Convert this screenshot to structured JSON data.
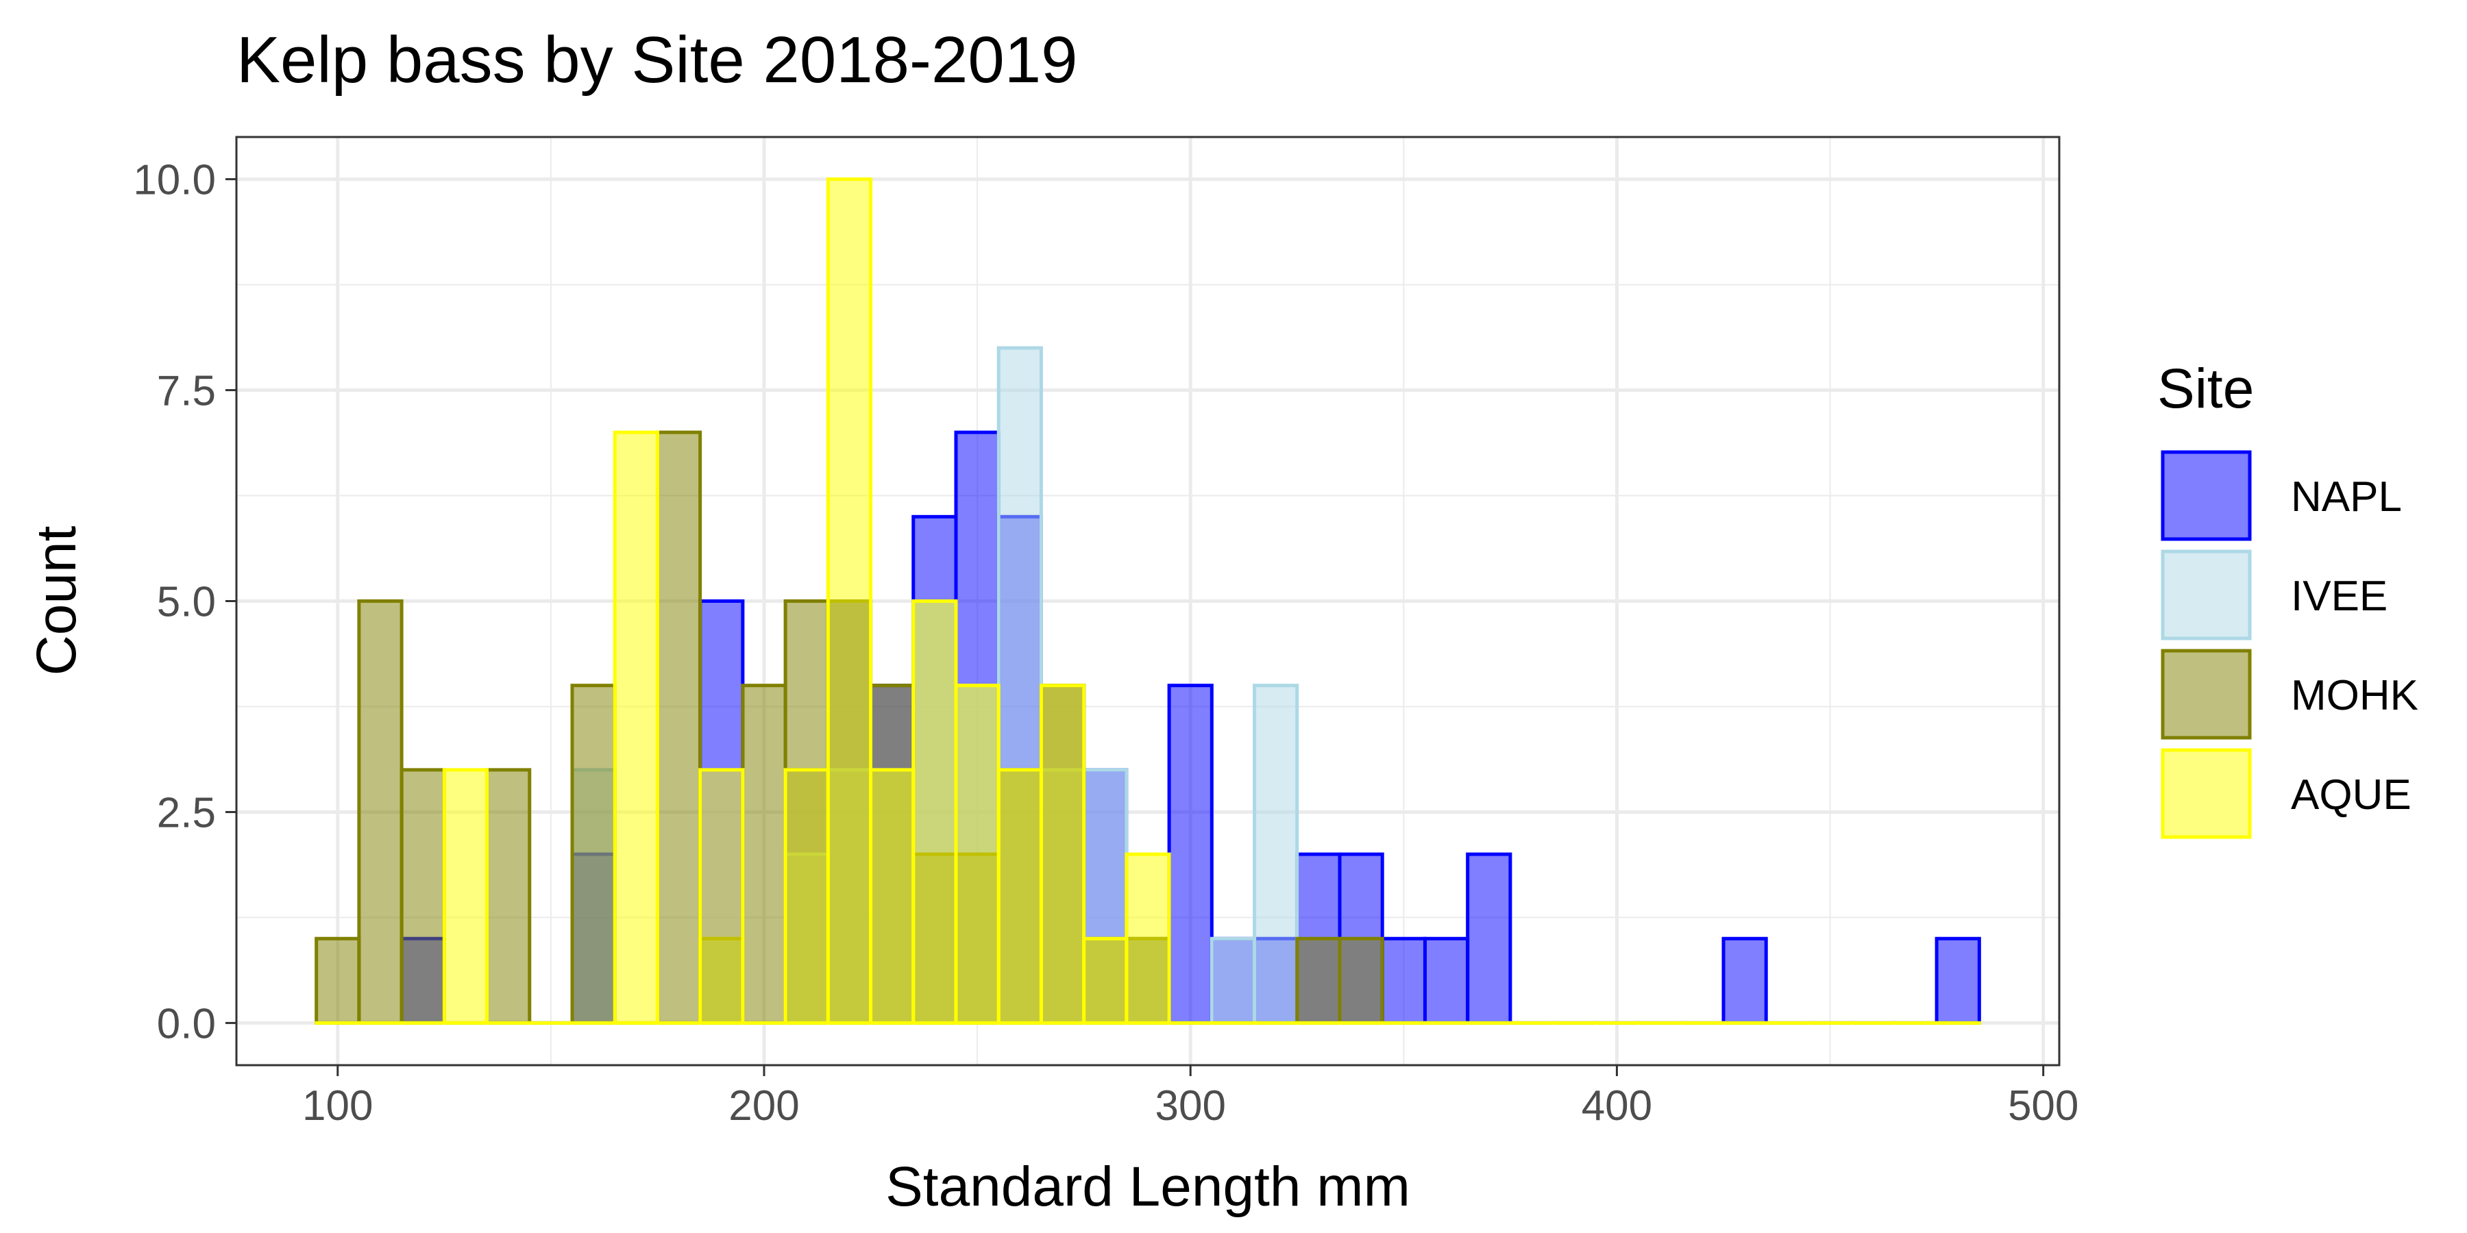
{
  "chart_data": {
    "type": "bar",
    "subtype": "overlaid-histogram",
    "title": "Kelp bass by Site 2018-2019",
    "xlabel": "Standard Length mm",
    "ylabel": "Count",
    "xlim": [
      76.25,
      503.75
    ],
    "ylim": [
      -0.5,
      10.5
    ],
    "x_ticks": [
      100,
      200,
      300,
      400,
      500
    ],
    "x_tick_labels": [
      "100",
      "200",
      "300",
      "400",
      "500"
    ],
    "y_ticks": [
      0,
      2.5,
      5,
      7.5,
      10
    ],
    "y_tick_labels": [
      "0.0",
      "2.5",
      "5.0",
      "7.5",
      "10.0"
    ],
    "bin_start": 95,
    "bin_width": 10,
    "grid": true,
    "legend": {
      "title": "Site",
      "position": "right"
    },
    "series": [
      {
        "name": "NAPL",
        "color": "#0000ff",
        "fill_opacity": 0.5,
        "values": [
          0,
          0,
          1,
          0,
          0,
          0,
          2,
          0,
          0,
          5,
          0,
          3,
          5,
          4,
          6,
          7,
          6,
          4,
          3,
          1,
          4,
          1,
          1,
          2,
          2,
          1,
          1,
          2,
          0,
          0,
          0,
          0,
          0,
          1,
          0,
          0,
          0,
          0,
          1
        ]
      },
      {
        "name": "IVEE",
        "color": "#add8e6",
        "fill_opacity": 0.5,
        "values": [
          0,
          0,
          0,
          0,
          0,
          0,
          3,
          0,
          0,
          1,
          0,
          2,
          3,
          3,
          5,
          4,
          8,
          3,
          3,
          1,
          0,
          1,
          4,
          0,
          0,
          0,
          0,
          0,
          0,
          0,
          0,
          0,
          0,
          0,
          0,
          0,
          0,
          0,
          0
        ]
      },
      {
        "name": "MOHK",
        "color": "#808000",
        "fill_opacity": 0.5,
        "values": [
          1,
          5,
          3,
          0,
          3,
          0,
          4,
          0,
          7,
          1,
          4,
          5,
          5,
          4,
          2,
          2,
          3,
          4,
          1,
          1,
          0,
          0,
          0,
          1,
          1,
          0,
          0,
          0,
          0,
          0,
          0,
          0,
          0,
          0,
          0,
          0,
          0,
          0,
          0
        ]
      },
      {
        "name": "AQUE",
        "color": "#ffff00",
        "fill_opacity": 0.5,
        "values": [
          0,
          0,
          0,
          3,
          0,
          0,
          0,
          7,
          0,
          3,
          0,
          3,
          10,
          3,
          5,
          4,
          3,
          4,
          1,
          2,
          0,
          0,
          0,
          0,
          0,
          0,
          0,
          0,
          0,
          0,
          0,
          0,
          0,
          0,
          0,
          0,
          0,
          0,
          0
        ]
      }
    ]
  }
}
